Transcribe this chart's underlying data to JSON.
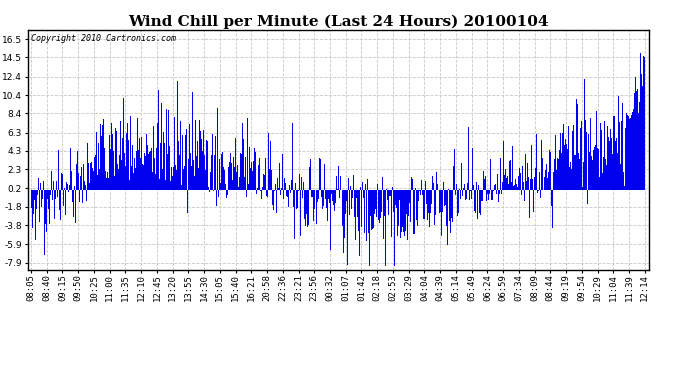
{
  "title": "Wind Chill per Minute (Last 24 Hours) 20100104",
  "copyright_text": "Copyright 2010 Cartronics.com",
  "yticks": [
    -7.9,
    -5.9,
    -3.8,
    -1.8,
    0.2,
    2.3,
    4.3,
    6.3,
    8.4,
    10.4,
    12.4,
    14.5,
    16.5
  ],
  "ylim": [
    -8.7,
    17.5
  ],
  "xtick_labels": [
    "08:05",
    "08:40",
    "09:15",
    "09:50",
    "10:25",
    "11:00",
    "11:35",
    "12:10",
    "12:45",
    "13:20",
    "13:55",
    "14:30",
    "15:05",
    "15:40",
    "16:21",
    "20:58",
    "22:36",
    "23:21",
    "23:56",
    "00:32",
    "01:07",
    "01:42",
    "02:18",
    "02:53",
    "03:29",
    "04:04",
    "04:39",
    "05:14",
    "05:49",
    "06:24",
    "06:59",
    "07:34",
    "08:09",
    "08:44",
    "09:19",
    "09:54",
    "10:29",
    "11:04",
    "11:39",
    "12:14"
  ],
  "bar_color": "#0000EE",
  "background_color": "#ffffff",
  "grid_color": "#c8c8c8",
  "title_fontsize": 11,
  "axis_fontsize": 6.5,
  "copyright_fontsize": 6.0,
  "seed": 12345
}
